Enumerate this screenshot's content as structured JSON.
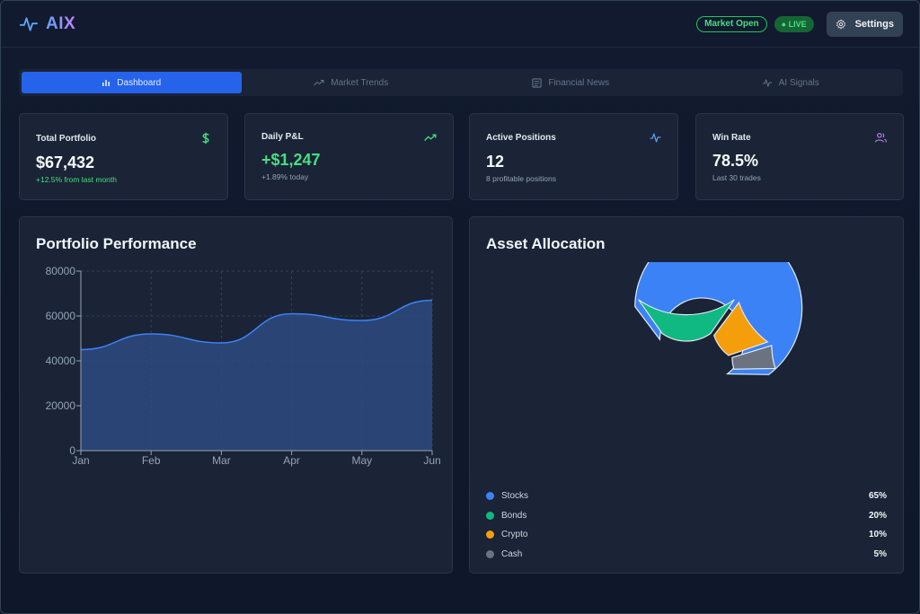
{
  "app": {
    "name": "AIX"
  },
  "header": {
    "market_status": "Market Open",
    "live_label": "● LIVE",
    "settings_label": "Settings"
  },
  "tabs": [
    {
      "label": "Dashboard",
      "icon": "bar-chart-icon",
      "active": true
    },
    {
      "label": "Market Trends",
      "icon": "trending-up-icon",
      "active": false
    },
    {
      "label": "Financial News",
      "icon": "newspaper-icon",
      "active": false
    },
    {
      "label": "AI Signals",
      "icon": "activity-icon",
      "active": false
    }
  ],
  "stats": [
    {
      "label": "Total Portfolio",
      "value": "$67,432",
      "sub": "+12.5% from last month",
      "icon": "dollar-icon",
      "icon_color": "#4ade80"
    },
    {
      "label": "Daily P&L",
      "value": "+$1,247",
      "sub": "+1.89% today",
      "icon": "trending-up-icon",
      "icon_color": "#4ade80"
    },
    {
      "label": "Active Positions",
      "value": "12",
      "sub": "8 profitable positions",
      "icon": "activity-icon",
      "icon_color": "#60a5fa"
    },
    {
      "label": "Win Rate",
      "value": "78.5%",
      "sub": "Last 30 trades",
      "icon": "users-icon",
      "icon_color": "#c084fc"
    }
  ],
  "performance": {
    "title": "Portfolio Performance"
  },
  "allocation": {
    "title": "Asset Allocation"
  },
  "colors": {
    "accent": "#2563eb",
    "stocks": "#3b82f6",
    "bonds": "#10b981",
    "crypto": "#f59e0b",
    "cash": "#6b7280"
  },
  "chart_data": [
    {
      "type": "area",
      "title": "Portfolio Performance",
      "categories": [
        "Jan",
        "Feb",
        "Mar",
        "Apr",
        "May",
        "Jun"
      ],
      "series": [
        {
          "values": [
            45000,
            52000,
            48000,
            61000,
            58000,
            67000
          ]
        }
      ],
      "yticks": [
        "0",
        "20000",
        "40000",
        "60000",
        "80000"
      ],
      "ylim": [
        0,
        80000
      ],
      "grid": true
    },
    {
      "type": "pie",
      "title": "Asset Allocation",
      "labels": [
        "Stocks",
        "Bonds",
        "Crypto",
        "Cash"
      ],
      "values": [
        65,
        20,
        10,
        5
      ],
      "display": [
        "65%",
        "20%",
        "10%",
        "5%"
      ],
      "colors": [
        "#3b82f6",
        "#10b981",
        "#f59e0b",
        "#6b7280"
      ],
      "donut": true
    }
  ]
}
